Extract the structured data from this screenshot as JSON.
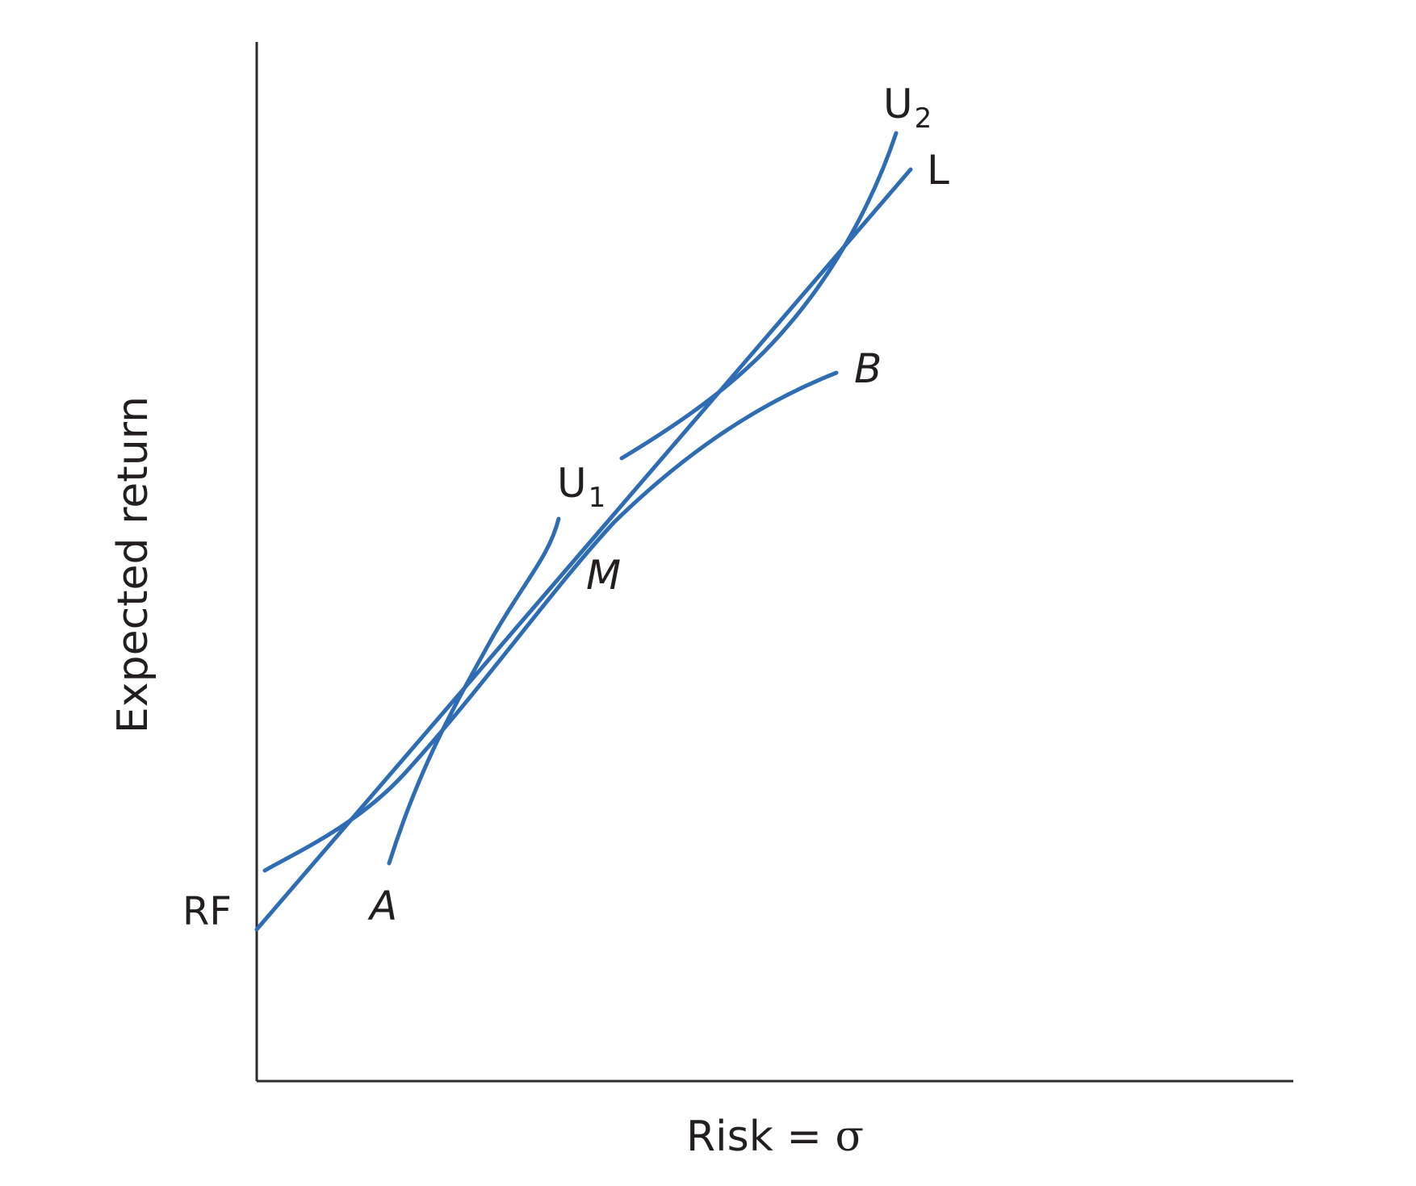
{
  "colors": {
    "curve": "#2e6db4",
    "axis": "#2b2b2b",
    "text": "#231f20"
  },
  "chart_data": {
    "type": "line",
    "title": "",
    "xlabel": "Risk = σ",
    "ylabel": "Expected return",
    "x_ticks_shown": false,
    "y_ticks_shown": false,
    "grid": false,
    "y_axis_labels": [
      "RF"
    ],
    "point_labels": [
      "M"
    ],
    "series": [
      {
        "name": "L",
        "kind": "capital market line (from RF, tangent at M)"
      },
      {
        "name": "AMB",
        "kind": "efficient frontier",
        "endpoint_labels": [
          "A",
          "B"
        ]
      },
      {
        "name": "U1",
        "kind": "indifference curve",
        "label_text": "U",
        "label_subscript": "1"
      },
      {
        "name": "U2",
        "kind": "indifference curve",
        "label_text": "U",
        "label_subscript": "2"
      }
    ]
  },
  "labels": {
    "rf": "RF",
    "a": "A",
    "b": "B",
    "m": "M",
    "l": "L",
    "u1_main": "U",
    "u1_sub": "1",
    "u2_main": "U",
    "u2_sub": "2",
    "x_axis_main": "Risk = ",
    "x_axis_sigma": "σ",
    "y_axis": "Expected return"
  }
}
